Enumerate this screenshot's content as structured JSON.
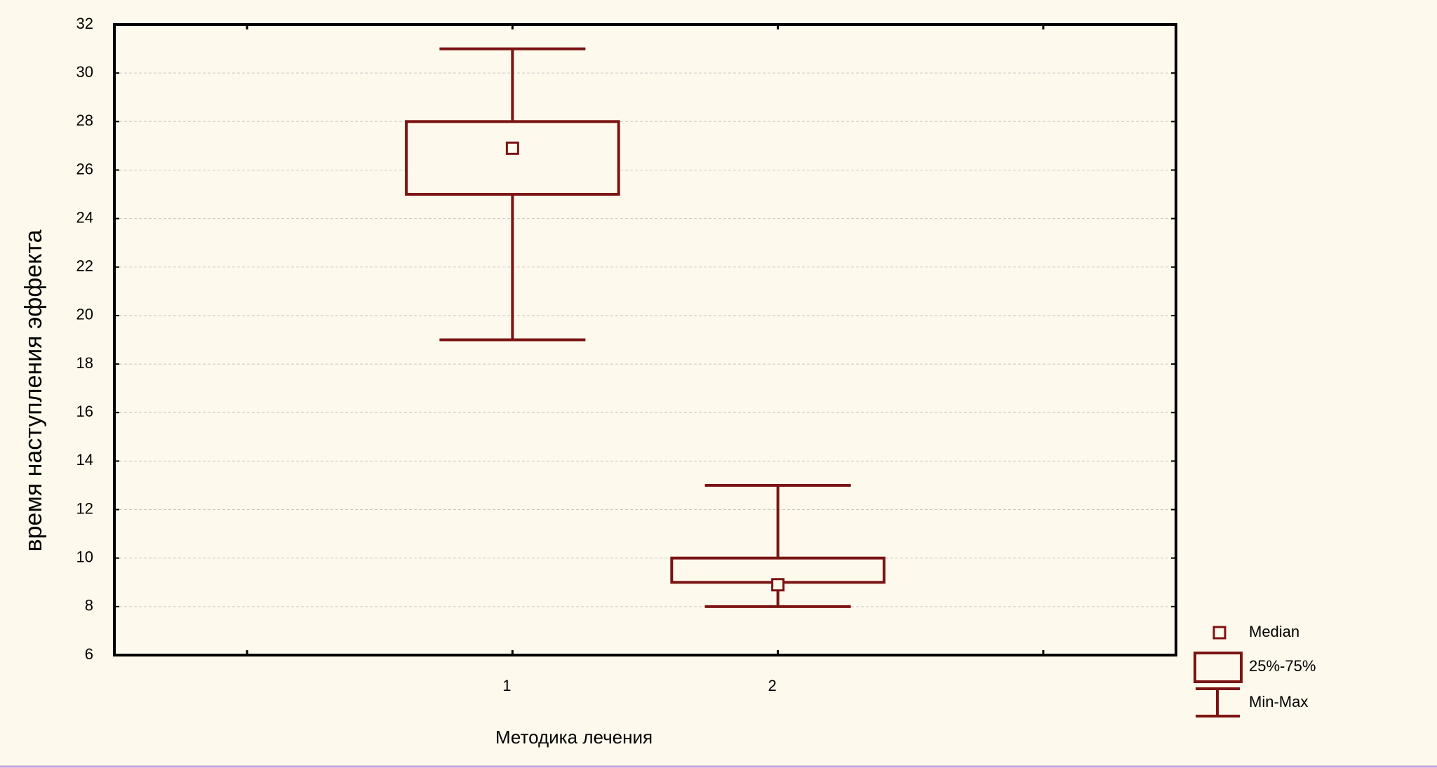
{
  "chart_data": {
    "type": "box",
    "y_label": "время наступления эффекта",
    "x_label": "Методика лечения",
    "categories": [
      "1",
      "2"
    ],
    "min": [
      19,
      8
    ],
    "q1": [
      25,
      9
    ],
    "median": [
      26.9,
      8.9
    ],
    "q3": [
      28,
      10
    ],
    "max": [
      31,
      13
    ],
    "color": "#7b1414",
    "legend": {
      "median": "Median",
      "box": "25%-75%",
      "whisker": "Min-Max"
    },
    "ylim": [
      6,
      32
    ],
    "yticks": [
      6,
      8,
      10,
      12,
      14,
      16,
      18,
      20,
      22,
      24,
      26,
      28,
      30,
      32
    ],
    "grid": true
  }
}
